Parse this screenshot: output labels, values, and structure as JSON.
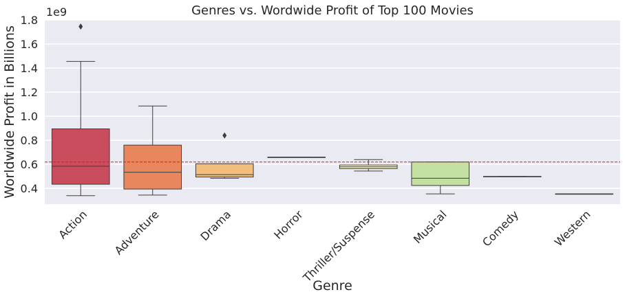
{
  "chart_data": {
    "type": "box",
    "title": "Genres vs. Wordwide Profit of Top 100 Movies",
    "xlabel": "Genre",
    "ylabel": "Worldwide Profit in Billions",
    "y_offset_label": "1e9",
    "ylim": [
      0.27,
      1.8
    ],
    "yticks": [
      0.4,
      0.6,
      0.8,
      1.0,
      1.2,
      1.4,
      1.6,
      1.8
    ],
    "ytick_labels": [
      "0.4",
      "0.6",
      "0.8",
      "1.0",
      "1.2",
      "1.4",
      "1.6",
      "1.8"
    ],
    "grid": true,
    "reference_line": {
      "y": 0.62,
      "color": "#e8191c",
      "style": "dashed"
    },
    "categories": [
      "Action",
      "Adventure",
      "Drama",
      "Horror",
      "Thriller/Suspense",
      "Musical",
      "Comedy",
      "Western"
    ],
    "boxes": [
      {
        "category": "Action",
        "whisker_low": 0.34,
        "q1": 0.435,
        "median": 0.585,
        "q3": 0.895,
        "whisker_high": 1.455,
        "outliers": [
          1.745
        ],
        "color": "#c94d5d"
      },
      {
        "category": "Adventure",
        "whisker_low": 0.345,
        "q1": 0.395,
        "median": 0.535,
        "q3": 0.76,
        "whisker_high": 1.085,
        "outliers": [],
        "color": "#e8875d"
      },
      {
        "category": "Drama",
        "whisker_low": 0.485,
        "q1": 0.495,
        "median": 0.515,
        "q3": 0.605,
        "whisker_high": 0.605,
        "outliers": [
          0.84
        ],
        "color": "#f1be7c"
      },
      {
        "category": "Horror",
        "whisker_low": 0.66,
        "q1": 0.66,
        "median": 0.66,
        "q3": 0.66,
        "whisker_high": 0.66,
        "outliers": [],
        "color": "#fbe8a0"
      },
      {
        "category": "Thriller/Suspense",
        "whisker_low": 0.545,
        "q1": 0.565,
        "median": 0.58,
        "q3": 0.595,
        "whisker_high": 0.64,
        "outliers": [],
        "color": "#f6f3b6"
      },
      {
        "category": "Musical",
        "whisker_low": 0.355,
        "q1": 0.425,
        "median": 0.485,
        "q3": 0.62,
        "whisker_high": 0.62,
        "outliers": [],
        "color": "#c5e0a3"
      },
      {
        "category": "Comedy",
        "whisker_low": 0.5,
        "q1": 0.5,
        "median": 0.5,
        "q3": 0.5,
        "whisker_high": 0.5,
        "outliers": [],
        "color": "#9fd4a6"
      },
      {
        "category": "Western",
        "whisker_low": 0.355,
        "q1": 0.355,
        "median": 0.355,
        "q3": 0.355,
        "whisker_high": 0.355,
        "outliers": [],
        "color": "#7fbfa8"
      }
    ]
  }
}
